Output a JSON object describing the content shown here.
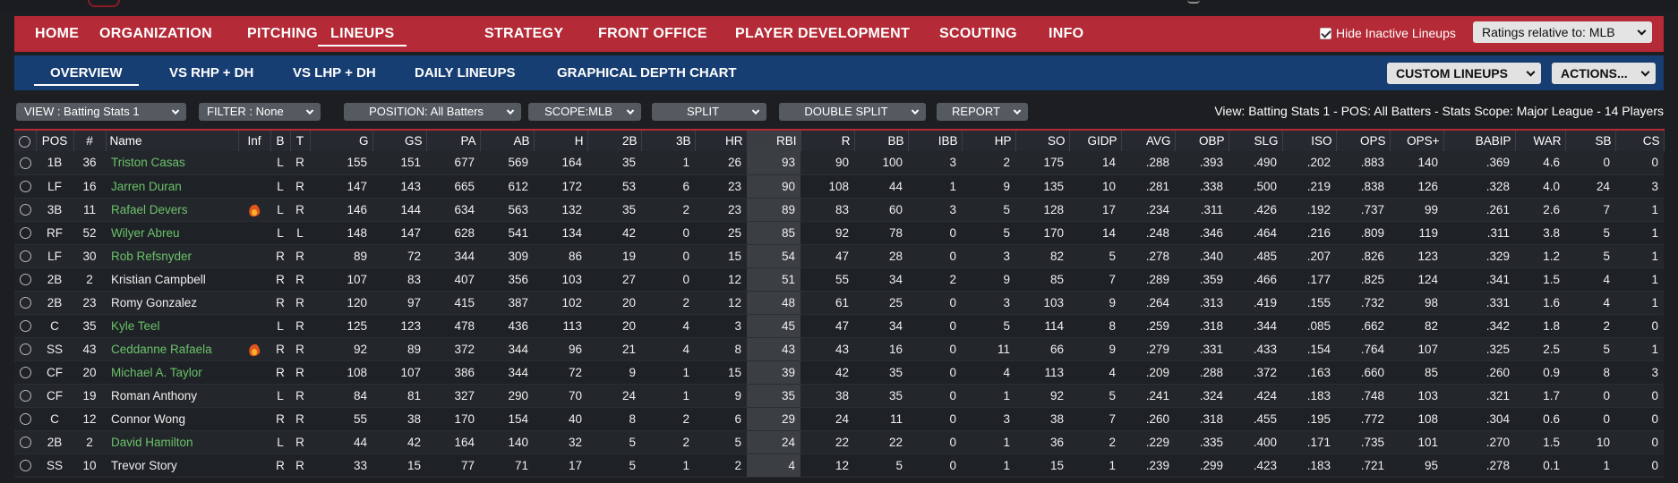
{
  "main_nav": [
    "HOME",
    "ORGANIZATION",
    "PITCHING",
    "LINEUPS",
    "STRATEGY",
    "FRONT OFFICE",
    "PLAYER DEVELOPMENT",
    "SCOUTING",
    "INFO"
  ],
  "hide_inactive_label": "Hide Inactive Lineups",
  "ratings_relative": "Ratings relative to: MLB",
  "sub_nav": [
    "OVERVIEW",
    "VS RHP + DH",
    "VS LHP + DH",
    "DAILY LINEUPS",
    "GRAPHICAL DEPTH CHART"
  ],
  "custom_lineups": "CUSTOM LINEUPS",
  "actions": "ACTIONS...",
  "filters": {
    "view": "VIEW : Batting Stats 1",
    "filter": "FILTER : None",
    "position": "POSITION: All Batters",
    "scope": "SCOPE:MLB",
    "split": "SPLIT",
    "double_split": "DOUBLE SPLIT",
    "report": "REPORT"
  },
  "view_summary": "View: Batting Stats 1 - POS: All Batters - Stats Scope: Major League - 14 Players",
  "columns": [
    "POS",
    "#",
    "Name",
    "Inf",
    "B",
    "T",
    "G",
    "GS",
    "PA",
    "AB",
    "H",
    "2B",
    "3B",
    "HR",
    "RBI",
    "R",
    "BB",
    "IBB",
    "HP",
    "SO",
    "GIDP",
    "AVG",
    "OBP",
    "SLG",
    "ISO",
    "OPS",
    "OPS+",
    "BABIP",
    "WAR",
    "SB",
    "CS"
  ],
  "icons": {
    "hot": "flame-icon",
    "radio": "radio-icon",
    "check": "checkbox-icon"
  },
  "colors": {
    "accent_red": "#b42a36",
    "nav_blue": "#173e73",
    "name_green": "#6bc26b"
  },
  "players": [
    {
      "pos": "1B",
      "num": "36",
      "name": "Triston Casas",
      "green": true,
      "hot": false,
      "b": "L",
      "t": "R",
      "g": "155",
      "gs": "151",
      "pa": "677",
      "ab": "569",
      "h": "164",
      "d": "35",
      "tr": "1",
      "hr": "26",
      "rbi": "93",
      "r": "90",
      "bb": "100",
      "ibb": "3",
      "hp": "2",
      "so": "175",
      "gidp": "14",
      "avg": ".288",
      "obp": ".393",
      "slg": ".490",
      "iso": ".202",
      "ops": ".883",
      "opsp": "140",
      "babip": ".369",
      "war": "4.6",
      "sb": "0",
      "cs": "0"
    },
    {
      "pos": "LF",
      "num": "16",
      "name": "Jarren Duran",
      "green": true,
      "hot": false,
      "b": "L",
      "t": "R",
      "g": "147",
      "gs": "143",
      "pa": "665",
      "ab": "612",
      "h": "172",
      "d": "53",
      "tr": "6",
      "hr": "23",
      "rbi": "90",
      "r": "108",
      "bb": "44",
      "ibb": "1",
      "hp": "9",
      "so": "135",
      "gidp": "10",
      "avg": ".281",
      "obp": ".338",
      "slg": ".500",
      "iso": ".219",
      "ops": ".838",
      "opsp": "126",
      "babip": ".328",
      "war": "4.0",
      "sb": "24",
      "cs": "3"
    },
    {
      "pos": "3B",
      "num": "11",
      "name": "Rafael Devers",
      "green": true,
      "hot": true,
      "b": "L",
      "t": "R",
      "g": "146",
      "gs": "144",
      "pa": "634",
      "ab": "563",
      "h": "132",
      "d": "35",
      "tr": "2",
      "hr": "23",
      "rbi": "89",
      "r": "83",
      "bb": "60",
      "ibb": "3",
      "hp": "5",
      "so": "128",
      "gidp": "17",
      "avg": ".234",
      "obp": ".311",
      "slg": ".426",
      "iso": ".192",
      "ops": ".737",
      "opsp": "99",
      "babip": ".261",
      "war": "2.6",
      "sb": "7",
      "cs": "1"
    },
    {
      "pos": "RF",
      "num": "52",
      "name": "Wilyer Abreu",
      "green": true,
      "hot": false,
      "b": "L",
      "t": "L",
      "g": "148",
      "gs": "147",
      "pa": "628",
      "ab": "541",
      "h": "134",
      "d": "42",
      "tr": "0",
      "hr": "25",
      "rbi": "85",
      "r": "92",
      "bb": "78",
      "ibb": "0",
      "hp": "5",
      "so": "170",
      "gidp": "14",
      "avg": ".248",
      "obp": ".346",
      "slg": ".464",
      "iso": ".216",
      "ops": ".809",
      "opsp": "119",
      "babip": ".311",
      "war": "3.8",
      "sb": "5",
      "cs": "1"
    },
    {
      "pos": "LF",
      "num": "30",
      "name": "Rob Refsnyder",
      "green": true,
      "hot": false,
      "b": "R",
      "t": "R",
      "g": "89",
      "gs": "72",
      "pa": "344",
      "ab": "309",
      "h": "86",
      "d": "19",
      "tr": "0",
      "hr": "15",
      "rbi": "54",
      "r": "47",
      "bb": "28",
      "ibb": "0",
      "hp": "3",
      "so": "82",
      "gidp": "5",
      "avg": ".278",
      "obp": ".340",
      "slg": ".485",
      "iso": ".207",
      "ops": ".826",
      "opsp": "123",
      "babip": ".329",
      "war": "1.2",
      "sb": "5",
      "cs": "1"
    },
    {
      "pos": "2B",
      "num": "2",
      "name": "Kristian Campbell",
      "green": false,
      "hot": false,
      "b": "R",
      "t": "R",
      "g": "107",
      "gs": "83",
      "pa": "407",
      "ab": "356",
      "h": "103",
      "d": "27",
      "tr": "0",
      "hr": "12",
      "rbi": "51",
      "r": "55",
      "bb": "34",
      "ibb": "2",
      "hp": "9",
      "so": "85",
      "gidp": "7",
      "avg": ".289",
      "obp": ".359",
      "slg": ".466",
      "iso": ".177",
      "ops": ".825",
      "opsp": "124",
      "babip": ".341",
      "war": "1.5",
      "sb": "4",
      "cs": "1"
    },
    {
      "pos": "2B",
      "num": "23",
      "name": "Romy Gonzalez",
      "green": false,
      "hot": false,
      "b": "R",
      "t": "R",
      "g": "120",
      "gs": "97",
      "pa": "415",
      "ab": "387",
      "h": "102",
      "d": "20",
      "tr": "2",
      "hr": "12",
      "rbi": "48",
      "r": "61",
      "bb": "25",
      "ibb": "0",
      "hp": "3",
      "so": "103",
      "gidp": "9",
      "avg": ".264",
      "obp": ".313",
      "slg": ".419",
      "iso": ".155",
      "ops": ".732",
      "opsp": "98",
      "babip": ".331",
      "war": "1.6",
      "sb": "4",
      "cs": "1"
    },
    {
      "pos": "C",
      "num": "35",
      "name": "Kyle Teel",
      "green": true,
      "hot": false,
      "b": "L",
      "t": "R",
      "g": "125",
      "gs": "123",
      "pa": "478",
      "ab": "436",
      "h": "113",
      "d": "20",
      "tr": "4",
      "hr": "3",
      "rbi": "45",
      "r": "47",
      "bb": "34",
      "ibb": "0",
      "hp": "5",
      "so": "114",
      "gidp": "8",
      "avg": ".259",
      "obp": ".318",
      "slg": ".344",
      "iso": ".085",
      "ops": ".662",
      "opsp": "82",
      "babip": ".342",
      "war": "1.8",
      "sb": "2",
      "cs": "0"
    },
    {
      "pos": "SS",
      "num": "43",
      "name": "Ceddanne Rafaela",
      "green": true,
      "hot": true,
      "b": "R",
      "t": "R",
      "g": "92",
      "gs": "89",
      "pa": "372",
      "ab": "344",
      "h": "96",
      "d": "21",
      "tr": "4",
      "hr": "8",
      "rbi": "43",
      "r": "43",
      "bb": "16",
      "ibb": "0",
      "hp": "11",
      "so": "66",
      "gidp": "9",
      "avg": ".279",
      "obp": ".331",
      "slg": ".433",
      "iso": ".154",
      "ops": ".764",
      "opsp": "107",
      "babip": ".325",
      "war": "2.5",
      "sb": "5",
      "cs": "1"
    },
    {
      "pos": "CF",
      "num": "20",
      "name": "Michael A. Taylor",
      "green": true,
      "hot": false,
      "b": "R",
      "t": "R",
      "g": "108",
      "gs": "107",
      "pa": "386",
      "ab": "344",
      "h": "72",
      "d": "9",
      "tr": "1",
      "hr": "15",
      "rbi": "39",
      "r": "42",
      "bb": "35",
      "ibb": "0",
      "hp": "4",
      "so": "113",
      "gidp": "4",
      "avg": ".209",
      "obp": ".288",
      "slg": ".372",
      "iso": ".163",
      "ops": ".660",
      "opsp": "85",
      "babip": ".260",
      "war": "0.9",
      "sb": "8",
      "cs": "3"
    },
    {
      "pos": "CF",
      "num": "19",
      "name": "Roman Anthony",
      "green": false,
      "hot": false,
      "b": "L",
      "t": "R",
      "g": "84",
      "gs": "81",
      "pa": "327",
      "ab": "290",
      "h": "70",
      "d": "24",
      "tr": "1",
      "hr": "9",
      "rbi": "35",
      "r": "38",
      "bb": "35",
      "ibb": "0",
      "hp": "1",
      "so": "92",
      "gidp": "5",
      "avg": ".241",
      "obp": ".324",
      "slg": ".424",
      "iso": ".183",
      "ops": ".748",
      "opsp": "103",
      "babip": ".321",
      "war": "1.7",
      "sb": "0",
      "cs": "0"
    },
    {
      "pos": "C",
      "num": "12",
      "name": "Connor Wong",
      "green": false,
      "hot": false,
      "b": "R",
      "t": "R",
      "g": "55",
      "gs": "38",
      "pa": "170",
      "ab": "154",
      "h": "40",
      "d": "8",
      "tr": "2",
      "hr": "6",
      "rbi": "29",
      "r": "24",
      "bb": "11",
      "ibb": "0",
      "hp": "3",
      "so": "38",
      "gidp": "7",
      "avg": ".260",
      "obp": ".318",
      "slg": ".455",
      "iso": ".195",
      "ops": ".772",
      "opsp": "108",
      "babip": ".304",
      "war": "0.6",
      "sb": "0",
      "cs": "0"
    },
    {
      "pos": "2B",
      "num": "2",
      "name": "David Hamilton",
      "green": true,
      "hot": false,
      "b": "L",
      "t": "R",
      "g": "44",
      "gs": "42",
      "pa": "164",
      "ab": "140",
      "h": "32",
      "d": "5",
      "tr": "2",
      "hr": "5",
      "rbi": "24",
      "r": "22",
      "bb": "22",
      "ibb": "0",
      "hp": "1",
      "so": "36",
      "gidp": "2",
      "avg": ".229",
      "obp": ".335",
      "slg": ".400",
      "iso": ".171",
      "ops": ".735",
      "opsp": "101",
      "babip": ".270",
      "war": "1.5",
      "sb": "10",
      "cs": "0"
    },
    {
      "pos": "SS",
      "num": "10",
      "name": "Trevor Story",
      "green": false,
      "hot": false,
      "b": "R",
      "t": "R",
      "g": "33",
      "gs": "15",
      "pa": "77",
      "ab": "71",
      "h": "17",
      "d": "5",
      "tr": "1",
      "hr": "2",
      "rbi": "4",
      "r": "12",
      "bb": "5",
      "ibb": "0",
      "hp": "1",
      "so": "15",
      "gidp": "1",
      "avg": ".239",
      "obp": ".299",
      "slg": ".423",
      "iso": ".183",
      "ops": ".721",
      "opsp": "95",
      "babip": ".278",
      "war": "0.1",
      "sb": "1",
      "cs": "0"
    }
  ]
}
